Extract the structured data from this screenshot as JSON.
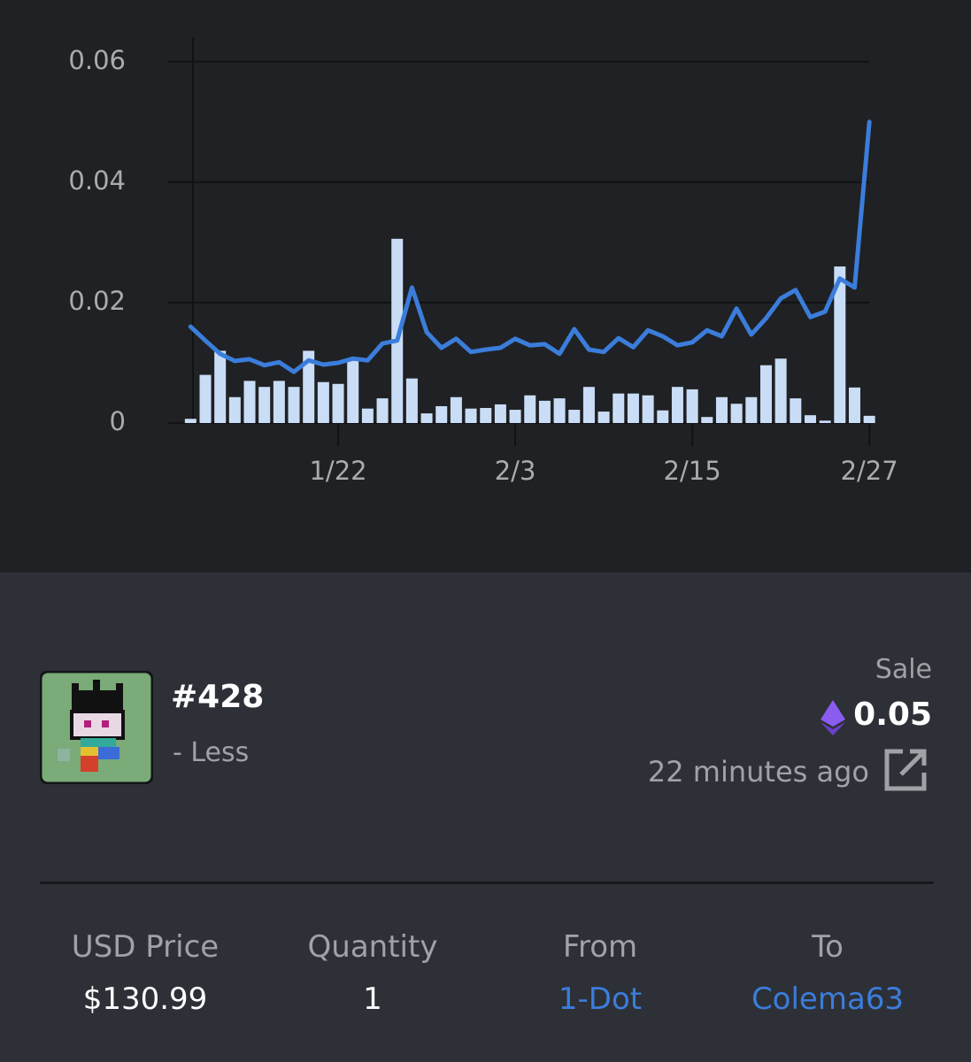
{
  "chart_data": {
    "type": "bar_line",
    "categories": [
      null,
      null,
      null,
      null,
      null,
      null,
      null,
      null,
      null,
      null,
      "1/22",
      null,
      null,
      null,
      null,
      null,
      null,
      null,
      null,
      null,
      null,
      null,
      "2/3",
      null,
      null,
      null,
      null,
      null,
      null,
      null,
      null,
      null,
      null,
      null,
      "2/15",
      null,
      null,
      null,
      null,
      null,
      null,
      null,
      null,
      null,
      null,
      null,
      "2/27"
    ],
    "series": [
      {
        "kind": "bar",
        "color": "#c9ddf6",
        "values": [
          0.0007,
          0.008,
          0.012,
          0.0043,
          0.007,
          0.006,
          0.007,
          0.006,
          0.012,
          0.0068,
          0.0065,
          0.0104,
          0.0024,
          0.0041,
          0.0306,
          0.0074,
          0.0016,
          0.0028,
          0.0043,
          0.0024,
          0.0025,
          0.0031,
          0.0022,
          0.0046,
          0.0037,
          0.0041,
          0.0022,
          0.006,
          0.0019,
          0.0049,
          0.0049,
          0.0046,
          0.0021,
          0.006,
          0.0056,
          0.001,
          0.0043,
          0.0032,
          0.0043,
          0.0096,
          0.0107,
          0.0041,
          0.0013,
          0.0004,
          0.026,
          0.0059,
          0.0012
        ]
      },
      {
        "kind": "line",
        "color": "#3b7ddb",
        "values": [
          0.016,
          0.0137,
          0.0115,
          0.0103,
          0.0106,
          0.0096,
          0.0101,
          0.0085,
          0.0104,
          0.0097,
          0.01,
          0.0107,
          0.0104,
          0.0132,
          0.0137,
          0.0225,
          0.0151,
          0.0125,
          0.014,
          0.0118,
          0.0122,
          0.0125,
          0.014,
          0.0129,
          0.0131,
          0.0115,
          0.0156,
          0.0122,
          0.0118,
          0.0141,
          0.0126,
          0.0154,
          0.0144,
          0.0129,
          0.0134,
          0.0154,
          0.0144,
          0.019,
          0.0147,
          0.0174,
          0.0207,
          0.0221,
          0.0176,
          0.0185,
          0.024,
          0.0225,
          0.05
        ]
      }
    ],
    "ylim": [
      0,
      0.0635
    ],
    "yticks": [
      0,
      0.02,
      0.04,
      0.06
    ],
    "grid": true
  },
  "sale": {
    "name": "#428",
    "trait": "- Less",
    "kind": "Sale",
    "price": "0.05",
    "time": "22 minutes ago",
    "stats": [
      {
        "label": "USD Price",
        "value": "$130.99"
      },
      {
        "label": "Quantity",
        "value": "1"
      },
      {
        "label": "From",
        "value": "1-Dot"
      },
      {
        "label": "To",
        "value": "Colema63"
      }
    ]
  }
}
